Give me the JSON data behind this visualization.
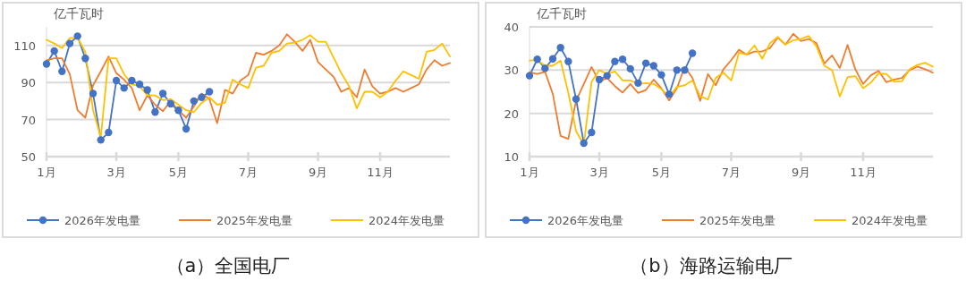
{
  "chart_data": [
    {
      "type": "line",
      "title": "（a）全国电厂",
      "ylabel": "亿千瓦时",
      "categories": [
        "1月",
        null,
        null,
        null,
        null,
        null,
        null,
        null,
        null,
        "3月",
        null,
        null,
        null,
        null,
        null,
        null,
        null,
        "5月",
        null,
        null,
        null,
        null,
        null,
        null,
        null,
        null,
        "7月",
        null,
        null,
        null,
        null,
        null,
        null,
        null,
        null,
        "9月",
        null,
        null,
        null,
        null,
        null,
        null,
        null,
        "11月",
        null,
        null,
        null,
        null,
        null,
        null,
        null,
        null,
        null
      ],
      "ylim": [
        50,
        120
      ],
      "yticks": [
        50,
        70,
        90,
        110
      ],
      "grid": "y",
      "legend": "bottom",
      "series": [
        {
          "name": "2026年发电量",
          "color": "#4472c4",
          "marker": "circle",
          "values": [
            100,
            107,
            96,
            111,
            115,
            103,
            84,
            59,
            63,
            91,
            87,
            91,
            89,
            86,
            74,
            84,
            78.5,
            75,
            65,
            80,
            82,
            85,
            null,
            null,
            null,
            null,
            null,
            null,
            null,
            null,
            null,
            null,
            null,
            null,
            null,
            null,
            null,
            null,
            null,
            null,
            null,
            null,
            null,
            null,
            null,
            null,
            null,
            null,
            null,
            null,
            null,
            null,
            null
          ]
        },
        {
          "name": "2025年发电量",
          "color": "#ed7d31",
          "marker": "none",
          "values": [
            102,
            103,
            103,
            94.5,
            75,
            71,
            88.5,
            96,
            104,
            95,
            91.5,
            87,
            75,
            83,
            78,
            74.5,
            80,
            75,
            71,
            77,
            84,
            81,
            68,
            86,
            84,
            91,
            94,
            106,
            105,
            107,
            110,
            116,
            112,
            107,
            113,
            101,
            97,
            93,
            85,
            87,
            82,
            97,
            88,
            84,
            85,
            87,
            85,
            87,
            89,
            97,
            102,
            99,
            100.5
          ]
        },
        {
          "name": "2024年发电量",
          "color": "#ffc000",
          "marker": "none",
          "values": [
            113,
            111,
            108.5,
            114,
            114,
            106.5,
            75,
            60.5,
            103,
            103,
            94.5,
            89,
            88,
            83,
            83,
            80.5,
            81,
            78,
            75,
            74,
            79,
            82,
            78,
            79,
            91.5,
            89,
            87,
            98,
            99,
            106,
            107,
            111,
            111.5,
            113,
            115.5,
            112,
            112,
            103.5,
            95,
            88,
            76,
            85,
            85,
            82,
            85,
            91,
            96,
            94,
            92,
            106.5,
            107.5,
            111,
            104
          ]
        }
      ]
    },
    {
      "type": "line",
      "title": "（b）海路运输电厂",
      "ylabel": "亿千瓦时",
      "categories": [
        "1月",
        null,
        null,
        null,
        null,
        null,
        null,
        null,
        null,
        "3月",
        null,
        null,
        null,
        null,
        null,
        null,
        null,
        "5月",
        null,
        null,
        null,
        null,
        null,
        null,
        null,
        null,
        "7月",
        null,
        null,
        null,
        null,
        null,
        null,
        null,
        null,
        "9月",
        null,
        null,
        null,
        null,
        null,
        null,
        null,
        "11月",
        null,
        null,
        null,
        null,
        null,
        null,
        null,
        null,
        null
      ],
      "ylim": [
        10,
        40
      ],
      "yticks": [
        10,
        20,
        30,
        40
      ],
      "grid": "y",
      "legend": "bottom",
      "series": [
        {
          "name": "2026年发电量",
          "color": "#4472c4",
          "marker": "circle",
          "values": [
            28.7,
            32.5,
            30.4,
            32.6,
            35.2,
            32,
            23.3,
            13.1,
            15.6,
            27.8,
            28.7,
            32,
            32.5,
            30.3,
            27,
            31.6,
            31,
            28.9,
            24.4,
            30,
            30,
            33.9,
            null,
            null,
            null,
            null,
            null,
            null,
            null,
            null,
            null,
            null,
            null,
            null,
            null,
            null,
            null,
            null,
            null,
            null,
            null,
            null,
            null,
            null,
            null,
            null,
            null,
            null,
            null,
            null,
            null,
            null,
            null
          ]
        },
        {
          "name": "2025年发电量",
          "color": "#ed7d31",
          "marker": "none",
          "values": [
            29.5,
            29.1,
            29.6,
            24.5,
            14.8,
            14.1,
            22.9,
            26.8,
            30.7,
            27.3,
            28.2,
            26.3,
            24.8,
            26.8,
            24.7,
            25.4,
            27.8,
            25.8,
            23,
            25.8,
            30.7,
            28.2,
            22.9,
            29.1,
            26.5,
            30.2,
            32.3,
            34.7,
            33.6,
            34.3,
            34.3,
            35.1,
            37.5,
            35.9,
            38.4,
            36.7,
            37.2,
            36.2,
            31.5,
            33.4,
            30.5,
            35.8,
            30.2,
            26.8,
            28.8,
            29.8,
            27.2,
            27.8,
            28.2,
            30,
            30.8,
            30.2,
            29.4
          ]
        },
        {
          "name": "2024年发电量",
          "color": "#ffc000",
          "marker": "none",
          "values": [
            32.2,
            32.3,
            31,
            31,
            32.2,
            24.8,
            15.9,
            12.8,
            27.3,
            30,
            29.1,
            29.7,
            27.6,
            27.6,
            26.8,
            27,
            26.8,
            25.6,
            23.9,
            26.1,
            26.5,
            27.6,
            24,
            23.2,
            28.2,
            29.4,
            27.6,
            34,
            33.6,
            35.7,
            32.6,
            36.2,
            37.7,
            35.9,
            36.9,
            37.2,
            37.9,
            35.4,
            31,
            30,
            23.9,
            28.4,
            28.6,
            25.8,
            27.1,
            29.2,
            29.1,
            27.3,
            27.4,
            30.2,
            31.2,
            31.7,
            30.8
          ]
        }
      ]
    }
  ]
}
